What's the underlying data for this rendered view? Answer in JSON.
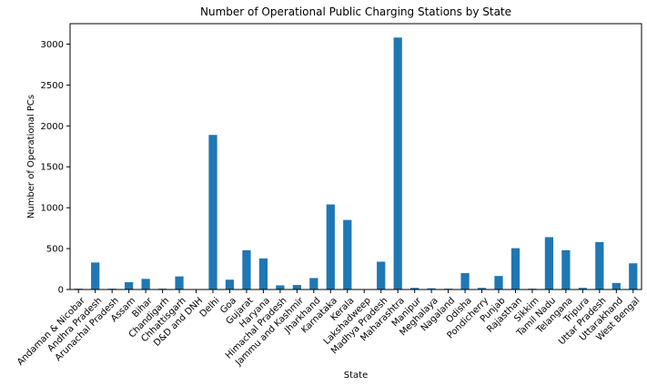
{
  "chart_data": {
    "type": "bar",
    "title": "Number of Operational Public Charging Stations by State",
    "xlabel": "State",
    "ylabel": "Number of Operational PCs",
    "ylim": [
      0,
      3250
    ],
    "yticks": [
      0,
      500,
      1000,
      1500,
      2000,
      2500,
      3000
    ],
    "grid": false,
    "legend": "none",
    "bar_color": "#1f77b4",
    "categories": [
      "Andaman & Nicobar",
      "Andhra Pradesh",
      "Arunachal Pradesh",
      "Assam",
      "Bihar",
      "Chandigarh",
      "Chhattisgarh",
      "D&D and DNH",
      "Delhi",
      "Goa",
      "Gujarat",
      "Haryana",
      "Himachal Pradesh",
      "Jammu and Kashmir",
      "Jharkhand",
      "Karnataka",
      "Kerala",
      "Lakshadweep",
      "Madhya Pradesh",
      "Maharashtra",
      "Manipur",
      "Meghalaya",
      "Nagaland",
      "Odisha",
      "Pondicherry",
      "Punjab",
      "Rajasthan",
      "Sikkim",
      "Tamil Nadu",
      "Telangana",
      "Tripura",
      "Uttar Pradesh",
      "Uttarakhand",
      "West Bengal"
    ],
    "values": [
      10,
      330,
      10,
      90,
      130,
      10,
      160,
      0,
      1890,
      120,
      480,
      380,
      50,
      55,
      140,
      1040,
      850,
      0,
      340,
      3080,
      20,
      15,
      10,
      200,
      20,
      165,
      505,
      10,
      640,
      480,
      20,
      580,
      80,
      320
    ]
  }
}
